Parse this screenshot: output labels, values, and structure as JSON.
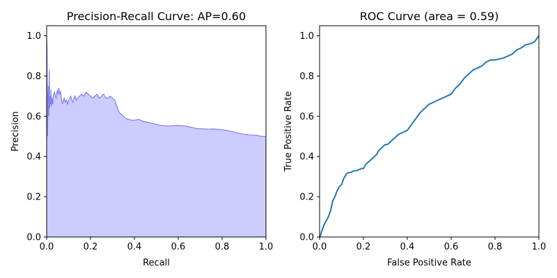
{
  "chart_data": [
    {
      "type": "area",
      "title": "Precision-Recall Curve: AP=0.60",
      "xlabel": "Recall",
      "ylabel": "Precision",
      "xlim": [
        0,
        1
      ],
      "ylim": [
        0,
        1.05
      ],
      "xticks": [
        "0.0",
        "0.2",
        "0.4",
        "0.6",
        "0.8",
        "1.0"
      ],
      "yticks": [
        "0.0",
        "0.2",
        "0.4",
        "0.6",
        "0.8",
        "1.0"
      ],
      "grid": false,
      "fill_color": "#ccccff",
      "line_color": "#8080ee",
      "series": [
        {
          "x": [
            0,
            0.002,
            0.004,
            0.006,
            0.008,
            0.01,
            0.012,
            0.014,
            0.016,
            0.018,
            0.02,
            0.022,
            0.024,
            0.026,
            0.028,
            0.03,
            0.033,
            0.036,
            0.04,
            0.044,
            0.048,
            0.052,
            0.056,
            0.06,
            0.064,
            0.068,
            0.072,
            0.076,
            0.08,
            0.085,
            0.09,
            0.095,
            0.1,
            0.105,
            0.11,
            0.115,
            0.12,
            0.125,
            0.13,
            0.135,
            0.14,
            0.15,
            0.16,
            0.17,
            0.18,
            0.19,
            0.2,
            0.21,
            0.22,
            0.23,
            0.24,
            0.25,
            0.26,
            0.27,
            0.28,
            0.29,
            0.3,
            0.31,
            0.32,
            0.33,
            0.34,
            0.35,
            0.36,
            0.37,
            0.38,
            0.39,
            0.4,
            0.42,
            0.44,
            0.46,
            0.48,
            0.5,
            0.52,
            0.54,
            0.56,
            0.58,
            0.6,
            0.62,
            0.64,
            0.66,
            0.68,
            0.7,
            0.72,
            0.74,
            0.76,
            0.78,
            0.8,
            0.82,
            0.84,
            0.86,
            0.88,
            0.9,
            0.92,
            0.94,
            0.96,
            0.98,
            1.0
          ],
          "y": [
            1.0,
            0.93,
            0.5,
            0.67,
            0.75,
            0.6,
            0.83,
            0.64,
            0.7,
            0.66,
            0.73,
            0.65,
            0.68,
            0.69,
            0.66,
            0.7,
            0.71,
            0.72,
            0.7,
            0.69,
            0.73,
            0.71,
            0.74,
            0.71,
            0.72,
            0.68,
            0.66,
            0.68,
            0.69,
            0.67,
            0.68,
            0.66,
            0.68,
            0.69,
            0.7,
            0.68,
            0.67,
            0.69,
            0.7,
            0.68,
            0.69,
            0.7,
            0.71,
            0.7,
            0.72,
            0.71,
            0.7,
            0.69,
            0.7,
            0.71,
            0.69,
            0.7,
            0.71,
            0.69,
            0.69,
            0.7,
            0.69,
            0.68,
            0.65,
            0.62,
            0.61,
            0.6,
            0.59,
            0.585,
            0.583,
            0.58,
            0.58,
            0.585,
            0.575,
            0.57,
            0.565,
            0.56,
            0.555,
            0.553,
            0.552,
            0.553,
            0.555,
            0.553,
            0.55,
            0.545,
            0.54,
            0.538,
            0.537,
            0.536,
            0.537,
            0.535,
            0.533,
            0.53,
            0.525,
            0.52,
            0.515,
            0.51,
            0.508,
            0.507,
            0.505,
            0.5,
            0.5
          ]
        }
      ]
    },
    {
      "type": "line",
      "title": "ROC Curve (area = 0.59)",
      "xlabel": "False Positive Rate",
      "ylabel": "True Positive Rate",
      "xlim": [
        0,
        1
      ],
      "ylim": [
        0,
        1.05
      ],
      "xticks": [
        "0.0",
        "0.2",
        "0.4",
        "0.6",
        "0.8",
        "1.0"
      ],
      "yticks": [
        "0.0",
        "0.2",
        "0.4",
        "0.6",
        "0.8",
        "1.0"
      ],
      "grid": false,
      "line_color": "#1f77b4",
      "series": [
        {
          "x": [
            0,
            0.005,
            0.01,
            0.02,
            0.03,
            0.04,
            0.05,
            0.06,
            0.07,
            0.08,
            0.09,
            0.1,
            0.11,
            0.12,
            0.13,
            0.14,
            0.15,
            0.16,
            0.17,
            0.18,
            0.19,
            0.2,
            0.21,
            0.22,
            0.23,
            0.24,
            0.25,
            0.26,
            0.27,
            0.28,
            0.29,
            0.3,
            0.31,
            0.32,
            0.33,
            0.34,
            0.35,
            0.36,
            0.37,
            0.38,
            0.4,
            0.42,
            0.44,
            0.46,
            0.48,
            0.5,
            0.52,
            0.54,
            0.56,
            0.58,
            0.6,
            0.62,
            0.64,
            0.66,
            0.68,
            0.7,
            0.72,
            0.74,
            0.76,
            0.78,
            0.8,
            0.82,
            0.84,
            0.86,
            0.88,
            0.9,
            0.92,
            0.94,
            0.96,
            0.98,
            0.99,
            1.0
          ],
          "y": [
            0,
            0.01,
            0.03,
            0.06,
            0.08,
            0.1,
            0.13,
            0.18,
            0.2,
            0.23,
            0.25,
            0.26,
            0.29,
            0.31,
            0.32,
            0.32,
            0.325,
            0.33,
            0.33,
            0.335,
            0.34,
            0.34,
            0.36,
            0.37,
            0.38,
            0.39,
            0.4,
            0.41,
            0.43,
            0.44,
            0.45,
            0.46,
            0.46,
            0.47,
            0.48,
            0.49,
            0.5,
            0.51,
            0.515,
            0.52,
            0.53,
            0.56,
            0.59,
            0.62,
            0.64,
            0.66,
            0.67,
            0.68,
            0.69,
            0.7,
            0.71,
            0.74,
            0.76,
            0.79,
            0.81,
            0.83,
            0.84,
            0.85,
            0.87,
            0.88,
            0.88,
            0.885,
            0.89,
            0.9,
            0.91,
            0.93,
            0.94,
            0.955,
            0.96,
            0.97,
            0.985,
            1.0
          ]
        }
      ]
    }
  ]
}
